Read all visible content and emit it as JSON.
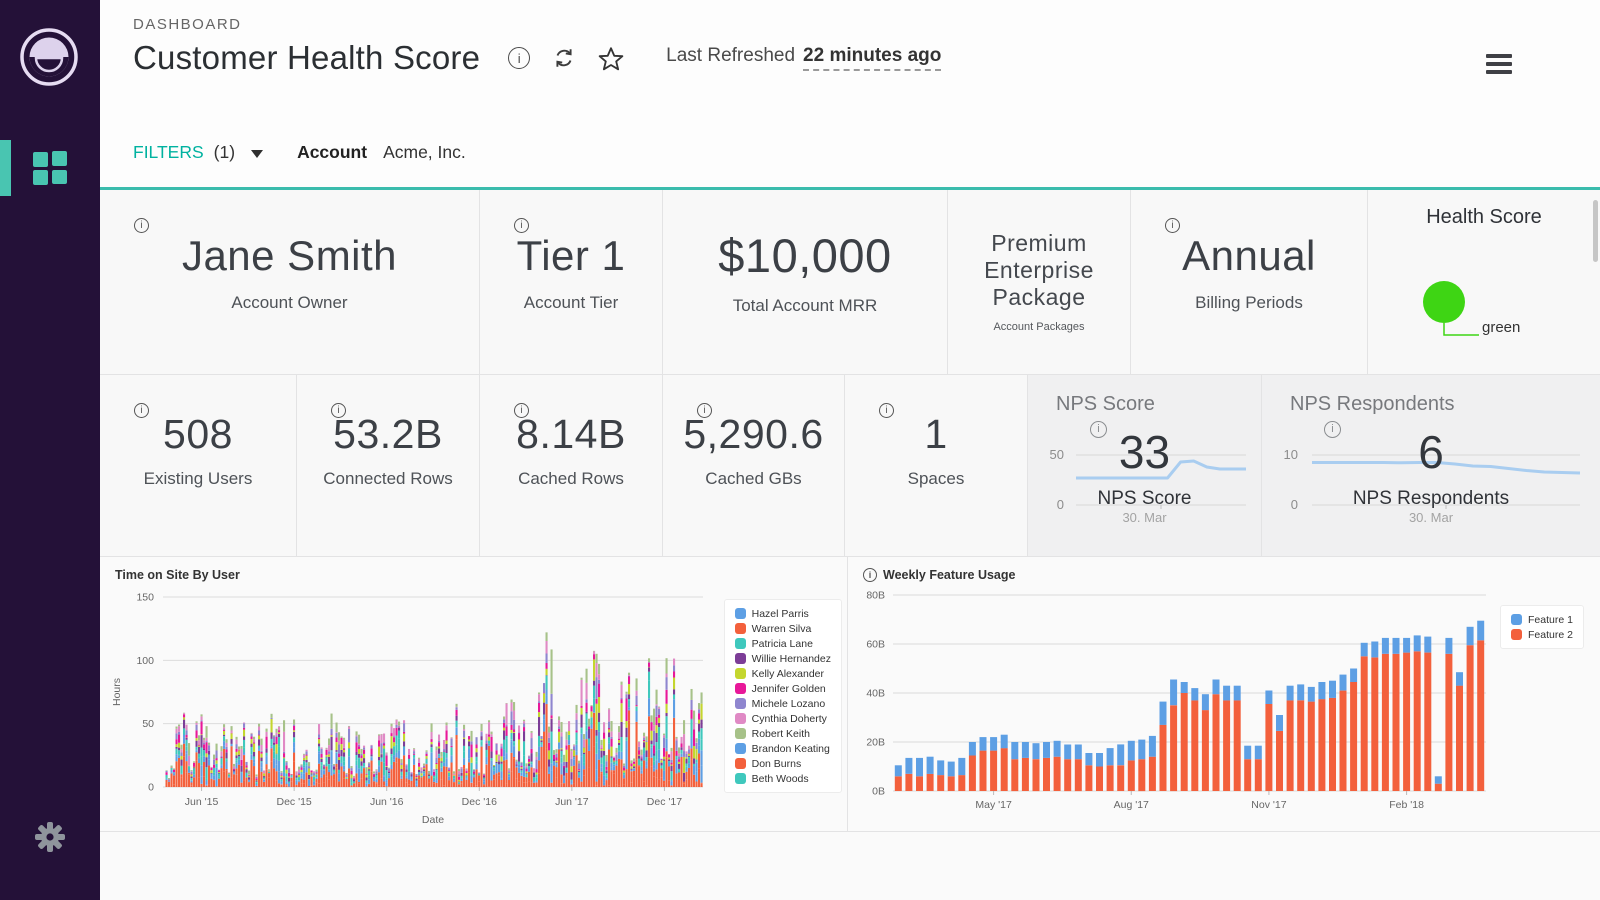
{
  "header": {
    "breadcrumb": "DASHBOARD",
    "title": "Customer Health Score",
    "last_refreshed_label": "Last Refreshed",
    "last_refreshed_value": "22 minutes ago"
  },
  "filters": {
    "label": "FILTERS",
    "count": "(1)",
    "field": "Account",
    "value": "Acme, Inc."
  },
  "colors": {
    "accent_teal": "#3bbcad",
    "sidebar_bg": "#241138",
    "nav_icon_teal": "#49c5b1",
    "health_green": "#3ed514",
    "sparkline_blue": "#a9cdf0",
    "feature1_blue": "#5d9fe4",
    "feature2_orange": "#f3603c"
  },
  "kpis1": [
    {
      "value": "Jane Smith",
      "label": "Account Owner"
    },
    {
      "value": "Tier 1",
      "label": "Account Tier"
    },
    {
      "value": "$10,000",
      "label": "Total Account MRR"
    },
    {
      "value": "Premium Enterprise Package",
      "label": "Account Packages"
    },
    {
      "value": "Annual",
      "label": "Billing Periods"
    }
  ],
  "health": {
    "title": "Health Score",
    "status": "green"
  },
  "kpis2": [
    {
      "value": "508",
      "label": "Existing Users"
    },
    {
      "value": "53.2B",
      "label": "Connected Rows"
    },
    {
      "value": "8.14B",
      "label": "Cached Rows"
    },
    {
      "value": "5,290.6",
      "label": "Cached GBs"
    },
    {
      "value": "1",
      "label": "Spaces"
    }
  ],
  "nps_score": {
    "title": "NPS Score",
    "value": "33",
    "ymax": "50",
    "ymin": "0",
    "series_label": "NPS Score",
    "x_tick": "30. Mar",
    "ymax_num": 50,
    "spark": [
      27,
      27,
      27,
      27,
      27,
      27,
      27,
      27,
      43,
      44,
      38,
      36,
      36,
      36
    ]
  },
  "nps_respondents": {
    "title": "NPS Respondents",
    "value": "6",
    "ymax": "10",
    "ymin": "0",
    "series_label": "NPS Respondents",
    "x_tick": "30. Mar",
    "ymax_num": 10,
    "spark": [
      8.5,
      8.5,
      8.5,
      8.5,
      8.5,
      8.45,
      8.5,
      8.5,
      8.2,
      7.8,
      7.7,
      7.3,
      6.9,
      6.6,
      6.5,
      6.4
    ]
  },
  "chart_data": [
    {
      "type": "area",
      "title": "Time on Site By User",
      "xlabel": "Date",
      "ylabel": "Hours",
      "ylim": [
        0,
        150
      ],
      "yticks": [
        0,
        50,
        100,
        150
      ],
      "grid": true,
      "legend_position": "right",
      "x_ticks": [
        "Jun '15",
        "Dec '15",
        "Jun '16",
        "Dec '16",
        "Jun '17",
        "Dec '17"
      ],
      "x_tick_month_index": [
        2,
        8,
        14,
        20,
        26,
        32
      ],
      "months_total": 36,
      "series": [
        {
          "name": "Hazel Parris",
          "color": "#5d9fe4"
        },
        {
          "name": "Warren Silva",
          "color": "#f3603c"
        },
        {
          "name": "Patricia Lane",
          "color": "#3fc8bd"
        },
        {
          "name": "Willie Hernandez",
          "color": "#7c3d97"
        },
        {
          "name": "Kelly Alexander",
          "color": "#c4d62e"
        },
        {
          "name": "Jennifer Golden",
          "color": "#e81899"
        },
        {
          "name": "Michele Lozano",
          "color": "#8f86cf"
        },
        {
          "name": "Cynthia Doherty",
          "color": "#e08ac5"
        },
        {
          "name": "Robert Keith",
          "color": "#a7c289"
        },
        {
          "name": "Brandon Keating",
          "color": "#5d9fe4"
        },
        {
          "name": "Don Burns",
          "color": "#f3603c"
        },
        {
          "name": "Beth Woods",
          "color": "#3fc8bd"
        }
      ],
      "stack_order": [
        1,
        10,
        0,
        9,
        2,
        11,
        3,
        4,
        5,
        6,
        7,
        8
      ],
      "envelope": [
        [
          0,
          5
        ],
        [
          0.02,
          45
        ],
        [
          0.05,
          70
        ],
        [
          0.08,
          55
        ],
        [
          0.12,
          60
        ],
        [
          0.16,
          50
        ],
        [
          0.2,
          62
        ],
        [
          0.25,
          55
        ],
        [
          0.3,
          60
        ],
        [
          0.35,
          52
        ],
        [
          0.4,
          62
        ],
        [
          0.45,
          55
        ],
        [
          0.5,
          60
        ],
        [
          0.55,
          65
        ],
        [
          0.6,
          60
        ],
        [
          0.65,
          70
        ],
        [
          0.7,
          80
        ],
        [
          0.715,
          140
        ],
        [
          0.73,
          85
        ],
        [
          0.76,
          90
        ],
        [
          0.8,
          108
        ],
        [
          0.84,
          95
        ],
        [
          0.88,
          110
        ],
        [
          0.92,
          100
        ],
        [
          0.96,
          105
        ],
        [
          1,
          95
        ]
      ]
    },
    {
      "type": "bar",
      "title": "Weekly Feature Usage",
      "stacked": true,
      "ylim": [
        0,
        80
      ],
      "ytick_values": [
        0,
        20,
        40,
        60,
        80
      ],
      "ytick_labels": [
        "0B",
        "20B",
        "40B",
        "60B",
        "80B"
      ],
      "grid": true,
      "legend_position": "top-right",
      "x_ticks": [
        {
          "label": "May '17",
          "index": 9
        },
        {
          "label": "Aug '17",
          "index": 22
        },
        {
          "label": "Nov '17",
          "index": 35
        },
        {
          "label": "Feb '18",
          "index": 48
        }
      ],
      "series": [
        {
          "name": "Feature 1",
          "color": "#5d9fe4",
          "values": [
            4.5,
            6.5,
            7.5,
            7,
            6,
            6,
            7,
            5.5,
            5.5,
            5.5,
            5.5,
            7,
            6.5,
            6.5,
            6.5,
            6.5,
            6,
            6,
            5,
            5.5,
            7,
            8.5,
            8,
            8,
            8.5,
            9.5,
            10.5,
            4.5,
            5,
            6.5,
            6,
            6,
            6,
            5.5,
            5.5,
            5.5,
            6.5,
            6,
            6.5,
            6,
            7,
            7,
            6.5,
            5.5,
            5.5,
            6.5,
            6.5,
            6.5,
            6,
            6.5,
            6.5,
            3,
            6.5,
            5.5,
            7.5,
            8
          ]
        },
        {
          "name": "Feature 2",
          "color": "#f3603c",
          "values": [
            6,
            7,
            6,
            7,
            6.5,
            6,
            6.5,
            14.5,
            16.5,
            16.5,
            17.5,
            13,
            13.5,
            13,
            13.5,
            14,
            13,
            13,
            10.5,
            10,
            10.5,
            10.5,
            12.5,
            13,
            14,
            27,
            35,
            40,
            37,
            33,
            39.5,
            37,
            37,
            13,
            13,
            35.5,
            24.5,
            37,
            37,
            36.5,
            37.5,
            38,
            41,
            44.5,
            55,
            54.5,
            56,
            56,
            56.5,
            57,
            56.5,
            3,
            56,
            43,
            59.5,
            61.5
          ]
        }
      ]
    }
  ]
}
